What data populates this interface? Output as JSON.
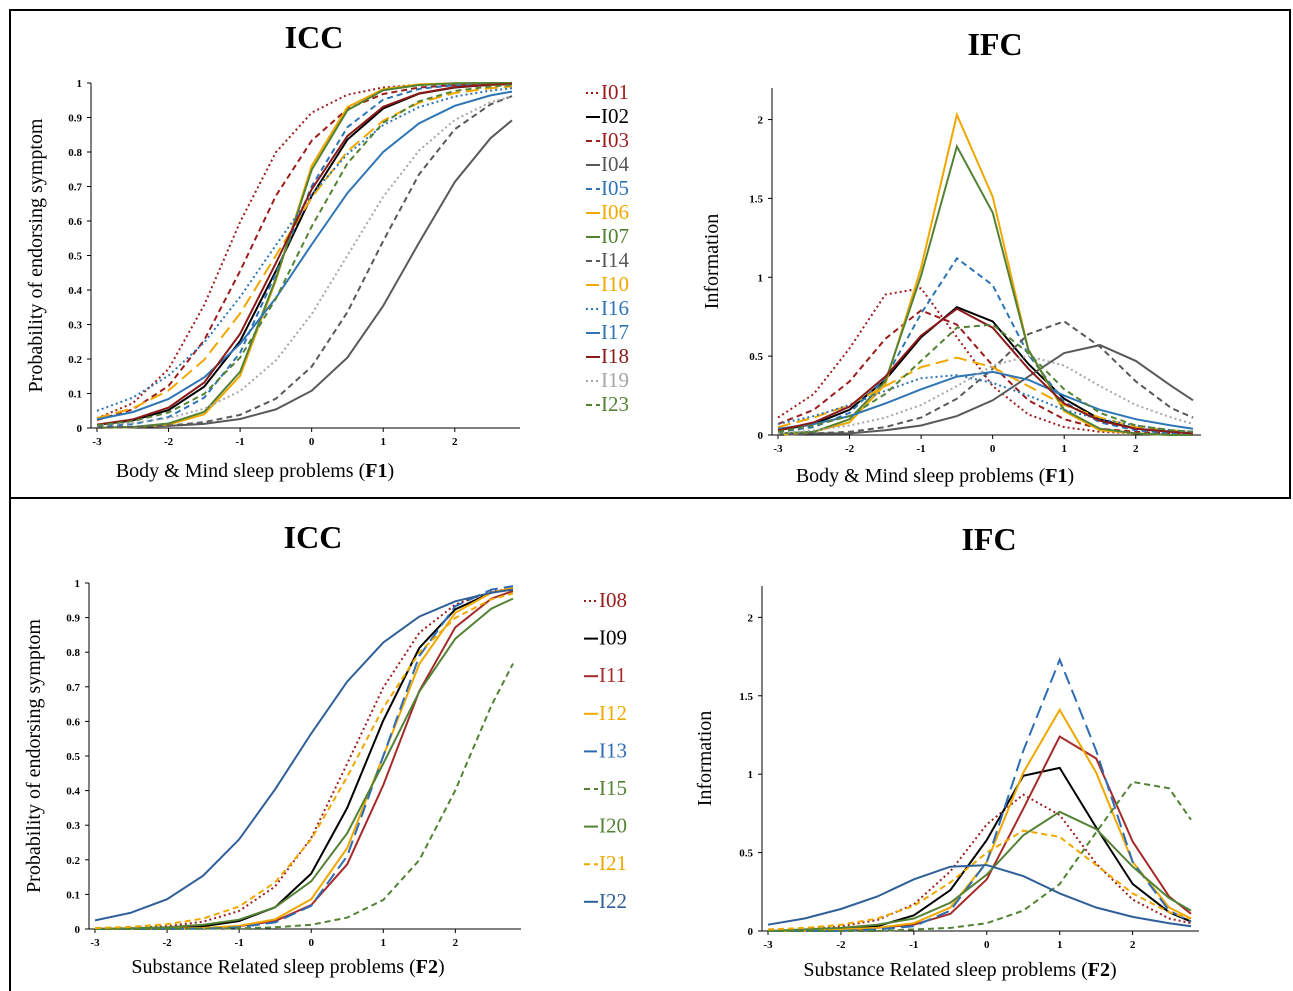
{
  "chart_data": [
    {
      "type": "line",
      "title": "ICC",
      "ylabel": "Probability of endorsing symptom",
      "xlabel": [
        "Body & Mind sleep problems (",
        "F1",
        ")"
      ],
      "legend": "right",
      "x": [
        -3,
        -2.5,
        -2,
        -1.5,
        -1,
        -0.5,
        0,
        0.5,
        1,
        1.5,
        2,
        2.5,
        2.8
      ],
      "xlim": [
        -3,
        2.8
      ],
      "ylim": [
        0,
        1
      ],
      "xticks": [
        -3,
        -2,
        -1,
        0,
        1,
        2
      ],
      "yticks": [
        0,
        0.1,
        0.2,
        0.3,
        0.4,
        0.5,
        0.6,
        0.7,
        0.8,
        0.9,
        1
      ],
      "series": [
        {
          "name": "I01",
          "color": "#9c1c1c",
          "dash": "dotted",
          "values": [
            0.028,
            0.072,
            0.171,
            0.357,
            0.597,
            0.799,
            0.914,
            0.966,
            0.987,
            0.995,
            0.998,
            0.999,
            1
          ]
        },
        {
          "name": "I02",
          "color": "#000000",
          "dash": "solid",
          "values": [
            0.009,
            0.022,
            0.052,
            0.12,
            0.252,
            0.455,
            0.673,
            0.836,
            0.926,
            0.969,
            0.987,
            0.995,
            0.997
          ]
        },
        {
          "name": "I03",
          "color": "#9c1c1c",
          "dash": "dashed",
          "values": [
            0.023,
            0.054,
            0.122,
            0.255,
            0.455,
            0.673,
            0.833,
            0.925,
            0.968,
            0.987,
            0.994,
            0.998,
            0.999
          ]
        },
        {
          "name": "I04",
          "color": "#595959",
          "dash": "solid",
          "values": [
            0.001,
            0.003,
            0.006,
            0.012,
            0.026,
            0.054,
            0.108,
            0.204,
            0.354,
            0.537,
            0.713,
            0.84,
            0.892
          ]
        },
        {
          "name": "I05",
          "color": "#2e75b6",
          "dash": "dashed",
          "values": [
            0.004,
            0.011,
            0.032,
            0.088,
            0.218,
            0.448,
            0.701,
            0.872,
            0.952,
            0.983,
            0.994,
            0.998,
            0.999
          ]
        },
        {
          "name": "I06",
          "color": "#f0a800",
          "dash": "solid",
          "values": [
            0.001,
            0.002,
            0.01,
            0.04,
            0.151,
            0.428,
            0.76,
            0.93,
            0.982,
            0.996,
            0.999,
            1,
            1
          ]
        },
        {
          "name": "I07",
          "color": "#548235",
          "dash": "solid",
          "values": [
            0.001,
            0.003,
            0.013,
            0.047,
            0.163,
            0.433,
            0.748,
            0.921,
            0.979,
            0.994,
            0.999,
            1,
            1
          ]
        },
        {
          "name": "I14",
          "color": "#595959",
          "dash": "dashed",
          "values": [
            0.001,
            0.003,
            0.007,
            0.017,
            0.038,
            0.085,
            0.178,
            0.336,
            0.542,
            0.735,
            0.866,
            0.938,
            0.962
          ]
        },
        {
          "name": "I10",
          "color": "#f0a800",
          "dash": "longdash",
          "values": [
            0.029,
            0.057,
            0.109,
            0.198,
            0.332,
            0.5,
            0.668,
            0.802,
            0.891,
            0.943,
            0.971,
            0.985,
            0.99
          ]
        },
        {
          "name": "I16",
          "color": "#2e75b6",
          "dash": "dotted",
          "values": [
            0.05,
            0.088,
            0.152,
            0.248,
            0.38,
            0.53,
            0.677,
            0.794,
            0.878,
            0.93,
            0.961,
            0.978,
            0.985
          ]
        },
        {
          "name": "I17",
          "color": "#2e75b6",
          "dash": "solid",
          "values": [
            0.025,
            0.046,
            0.084,
            0.147,
            0.244,
            0.377,
            0.532,
            0.681,
            0.8,
            0.883,
            0.934,
            0.964,
            0.975
          ]
        },
        {
          "name": "I18",
          "color": "#8b1a1a",
          "dash": "solid",
          "values": [
            0.01,
            0.025,
            0.059,
            0.132,
            0.273,
            0.478,
            0.692,
            0.846,
            0.931,
            0.97,
            0.988,
            0.995,
            0.997
          ]
        },
        {
          "name": "I19",
          "color": "#a6a6a6",
          "dash": "dotted",
          "values": [
            0.007,
            0.014,
            0.029,
            0.056,
            0.107,
            0.196,
            0.33,
            0.5,
            0.67,
            0.804,
            0.893,
            0.944,
            0.962
          ]
        },
        {
          "name": "I23",
          "color": "#548235",
          "dash": "dashed",
          "values": [
            0.008,
            0.02,
            0.045,
            0.099,
            0.204,
            0.375,
            0.584,
            0.767,
            0.885,
            0.947,
            0.977,
            0.99,
            0.994
          ]
        }
      ]
    },
    {
      "type": "line",
      "title": "IFC",
      "ylabel": "Information",
      "xlabel": [
        "Body & Mind sleep problems (",
        "F1",
        ")"
      ],
      "x": [
        -3,
        -2.5,
        -2,
        -1.5,
        -1,
        -0.5,
        0,
        0.5,
        1,
        1.5,
        2,
        2.5,
        2.8
      ],
      "xlim": [
        -3,
        2.8
      ],
      "ylim": [
        0,
        2.2
      ],
      "xticks": [
        -3,
        -2,
        -1,
        0,
        1,
        2
      ],
      "yticks": [
        0,
        0.5,
        1,
        1.5,
        2
      ],
      "series": [
        {
          "color": "#9c1c1c",
          "dash": "dotted",
          "values": [
            0.11,
            0.26,
            0.55,
            0.89,
            0.93,
            0.62,
            0.31,
            0.13,
            0.05,
            0.02,
            0.01,
            0,
            0
          ]
        },
        {
          "color": "#000000",
          "dash": "solid",
          "values": [
            0.03,
            0.07,
            0.16,
            0.35,
            0.62,
            0.81,
            0.72,
            0.45,
            0.23,
            0.1,
            0.04,
            0.02,
            0.01
          ]
        },
        {
          "color": "#9c1c1c",
          "dash": "dashed",
          "values": [
            0.07,
            0.16,
            0.34,
            0.61,
            0.79,
            0.7,
            0.44,
            0.22,
            0.1,
            0.04,
            0.02,
            0.01,
            0
          ]
        },
        {
          "color": "#595959",
          "dash": "solid",
          "values": [
            0,
            0.01,
            0.01,
            0.03,
            0.06,
            0.12,
            0.22,
            0.37,
            0.52,
            0.57,
            0.47,
            0.31,
            0.22
          ]
        },
        {
          "color": "#2e75b6",
          "dash": "dashed",
          "values": [
            0.02,
            0.05,
            0.14,
            0.36,
            0.77,
            1.12,
            0.95,
            0.51,
            0.21,
            0.08,
            0.03,
            0.01,
            0
          ]
        },
        {
          "color": "#f0a800",
          "dash": "solid",
          "values": [
            0,
            0.02,
            0.08,
            0.32,
            1.06,
            2.03,
            1.51,
            0.54,
            0.15,
            0.03,
            0.01,
            0,
            0
          ]
        },
        {
          "color": "#548235",
          "dash": "solid",
          "values": [
            0.01,
            0.02,
            0.1,
            0.34,
            1.01,
            1.83,
            1.41,
            0.54,
            0.16,
            0.04,
            0.01,
            0,
            0
          ]
        },
        {
          "color": "#595959",
          "dash": "dashed",
          "values": [
            0,
            0.01,
            0.02,
            0.05,
            0.11,
            0.23,
            0.42,
            0.64,
            0.72,
            0.56,
            0.34,
            0.17,
            0.11
          ]
        },
        {
          "color": "#f0a800",
          "dash": "longdash",
          "values": [
            0.05,
            0.11,
            0.19,
            0.31,
            0.43,
            0.49,
            0.43,
            0.31,
            0.19,
            0.11,
            0.05,
            0.03,
            0.02
          ]
        },
        {
          "color": "#2e75b6",
          "dash": "dotted",
          "values": [
            0.07,
            0.12,
            0.19,
            0.28,
            0.36,
            0.38,
            0.33,
            0.25,
            0.16,
            0.1,
            0.06,
            0.03,
            0.02
          ]
        },
        {
          "color": "#2e75b6",
          "dash": "solid",
          "values": [
            0.04,
            0.07,
            0.12,
            0.2,
            0.29,
            0.37,
            0.4,
            0.35,
            0.25,
            0.16,
            0.1,
            0.06,
            0.04
          ]
        },
        {
          "color": "#8b1a1a",
          "dash": "solid",
          "values": [
            0.03,
            0.08,
            0.18,
            0.37,
            0.63,
            0.8,
            0.68,
            0.42,
            0.2,
            0.09,
            0.04,
            0.02,
            0.01
          ]
        },
        {
          "color": "#a6a6a6",
          "dash": "dotted",
          "values": [
            0.01,
            0.03,
            0.06,
            0.11,
            0.19,
            0.31,
            0.44,
            0.5,
            0.44,
            0.31,
            0.19,
            0.11,
            0.07
          ]
        },
        {
          "color": "#548235",
          "dash": "dashed",
          "values": [
            0.02,
            0.06,
            0.12,
            0.26,
            0.47,
            0.68,
            0.7,
            0.52,
            0.29,
            0.14,
            0.06,
            0.03,
            0.02
          ]
        }
      ]
    },
    {
      "type": "line",
      "title": "ICC",
      "ylabel": "Probability of endorsing symptom",
      "xlabel": [
        "Substance Related sleep problems (",
        "F2",
        ")"
      ],
      "legend": "right",
      "x": [
        -3,
        -2.5,
        -2,
        -1.5,
        -1,
        -0.5,
        0,
        0.5,
        1,
        1.5,
        2,
        2.5,
        2.8
      ],
      "xlim": [
        -3,
        2.8
      ],
      "ylim": [
        0,
        1
      ],
      "xticks": [
        -3,
        -2,
        -1,
        0,
        1,
        2
      ],
      "yticks": [
        0,
        0.1,
        0.2,
        0.3,
        0.4,
        0.5,
        0.6,
        0.7,
        0.8,
        0.9,
        1
      ],
      "series": [
        {
          "name": "I08",
          "color": "#9c1c1c",
          "dash": "dotted",
          "values": [
            0.001,
            0.003,
            0.008,
            0.021,
            0.052,
            0.123,
            0.263,
            0.478,
            0.698,
            0.856,
            0.938,
            0.975,
            0.985
          ]
        },
        {
          "name": "I09",
          "color": "#000000",
          "dash": "solid",
          "values": [
            0,
            0.001,
            0.003,
            0.008,
            0.023,
            0.063,
            0.16,
            0.35,
            0.603,
            0.812,
            0.924,
            0.972,
            0.985
          ]
        },
        {
          "name": "I11",
          "color": "#a52a2a",
          "dash": "solid",
          "values": [
            0,
            0,
            0.001,
            0.003,
            0.008,
            0.023,
            0.069,
            0.187,
            0.416,
            0.688,
            0.872,
            0.955,
            0.977
          ]
        },
        {
          "name": "I12",
          "color": "#f0a800",
          "dash": "solid",
          "values": [
            0,
            0,
            0.001,
            0.003,
            0.009,
            0.028,
            0.086,
            0.234,
            0.5,
            0.766,
            0.914,
            0.972,
            0.986
          ]
        },
        {
          "name": "I13",
          "color": "#2e6db4",
          "dash": "longdash",
          "values": [
            0,
            0,
            0,
            0.001,
            0.005,
            0.019,
            0.067,
            0.211,
            0.5,
            0.789,
            0.933,
            0.981,
            0.991
          ]
        },
        {
          "name": "I15",
          "color": "#548235",
          "dash": "dashed",
          "values": [
            0,
            0,
            0,
            0.001,
            0.002,
            0.005,
            0.012,
            0.033,
            0.084,
            0.199,
            0.401,
            0.646,
            0.767
          ]
        },
        {
          "name": "I20",
          "color": "#548235",
          "dash": "solid",
          "values": [
            0.001,
            0.002,
            0.005,
            0.012,
            0.027,
            0.063,
            0.138,
            0.277,
            0.478,
            0.686,
            0.839,
            0.926,
            0.955
          ]
        },
        {
          "name": "I21",
          "color": "#f0a800",
          "dash": "dashed",
          "values": [
            0.003,
            0.006,
            0.014,
            0.03,
            0.065,
            0.135,
            0.259,
            0.44,
            0.639,
            0.799,
            0.899,
            0.953,
            0.97
          ]
        },
        {
          "name": "I22",
          "color": "#2f5f98",
          "dash": "solid",
          "values": [
            0.025,
            0.047,
            0.086,
            0.154,
            0.259,
            0.404,
            0.565,
            0.715,
            0.828,
            0.903,
            0.947,
            0.972,
            0.981
          ]
        }
      ]
    },
    {
      "type": "line",
      "title": "IFC",
      "ylabel": "Information",
      "xlabel": [
        "Substance Related sleep problems (",
        "F2",
        ")"
      ],
      "x": [
        -3,
        -2.5,
        -2,
        -1.5,
        -1,
        -0.5,
        0,
        0.5,
        1,
        1.5,
        2,
        2.5,
        2.8
      ],
      "xlim": [
        -3,
        2.8
      ],
      "ylim": [
        0,
        2.2
      ],
      "xticks": [
        -3,
        -2,
        -1,
        0,
        1,
        2
      ],
      "yticks": [
        0,
        0.5,
        1,
        1.5,
        2
      ],
      "series": [
        {
          "color": "#9c1c1c",
          "dash": "dotted",
          "values": [
            0,
            0.01,
            0.03,
            0.07,
            0.17,
            0.38,
            0.68,
            0.87,
            0.74,
            0.43,
            0.2,
            0.08,
            0.05
          ]
        },
        {
          "color": "#000000",
          "dash": "solid",
          "values": [
            0,
            0,
            0.01,
            0.03,
            0.1,
            0.26,
            0.58,
            0.99,
            1.04,
            0.66,
            0.3,
            0.12,
            0.06
          ]
        },
        {
          "color": "#a52a2a",
          "dash": "solid",
          "values": [
            0,
            0,
            0,
            0.02,
            0.04,
            0.11,
            0.33,
            0.78,
            1.24,
            1.1,
            0.57,
            0.22,
            0.11
          ]
        },
        {
          "color": "#f0a800",
          "dash": "solid",
          "values": [
            0,
            0,
            0.01,
            0.02,
            0.05,
            0.15,
            0.44,
            1.01,
            1.41,
            1.01,
            0.44,
            0.15,
            0.08
          ]
        },
        {
          "color": "#2e6db4",
          "dash": "longdash",
          "values": [
            0,
            0,
            0,
            0.01,
            0.03,
            0.13,
            0.44,
            1.15,
            1.73,
            1.15,
            0.44,
            0.13,
            0.06
          ]
        },
        {
          "color": "#548235",
          "dash": "dashed",
          "values": [
            0,
            0,
            0,
            0,
            0.01,
            0.02,
            0.05,
            0.13,
            0.3,
            0.63,
            0.95,
            0.91,
            0.71
          ]
        },
        {
          "color": "#548235",
          "dash": "solid",
          "values": [
            0,
            0.01,
            0.02,
            0.04,
            0.08,
            0.18,
            0.36,
            0.61,
            0.76,
            0.65,
            0.41,
            0.21,
            0.13
          ]
        },
        {
          "color": "#f0a800",
          "dash": "dashed",
          "values": [
            0.01,
            0.02,
            0.04,
            0.08,
            0.16,
            0.31,
            0.5,
            0.64,
            0.6,
            0.42,
            0.24,
            0.12,
            0.08
          ]
        },
        {
          "color": "#2f5f98",
          "dash": "solid",
          "values": [
            0.04,
            0.08,
            0.14,
            0.22,
            0.33,
            0.41,
            0.42,
            0.35,
            0.24,
            0.15,
            0.09,
            0.05,
            0.03
          ]
        }
      ]
    }
  ]
}
